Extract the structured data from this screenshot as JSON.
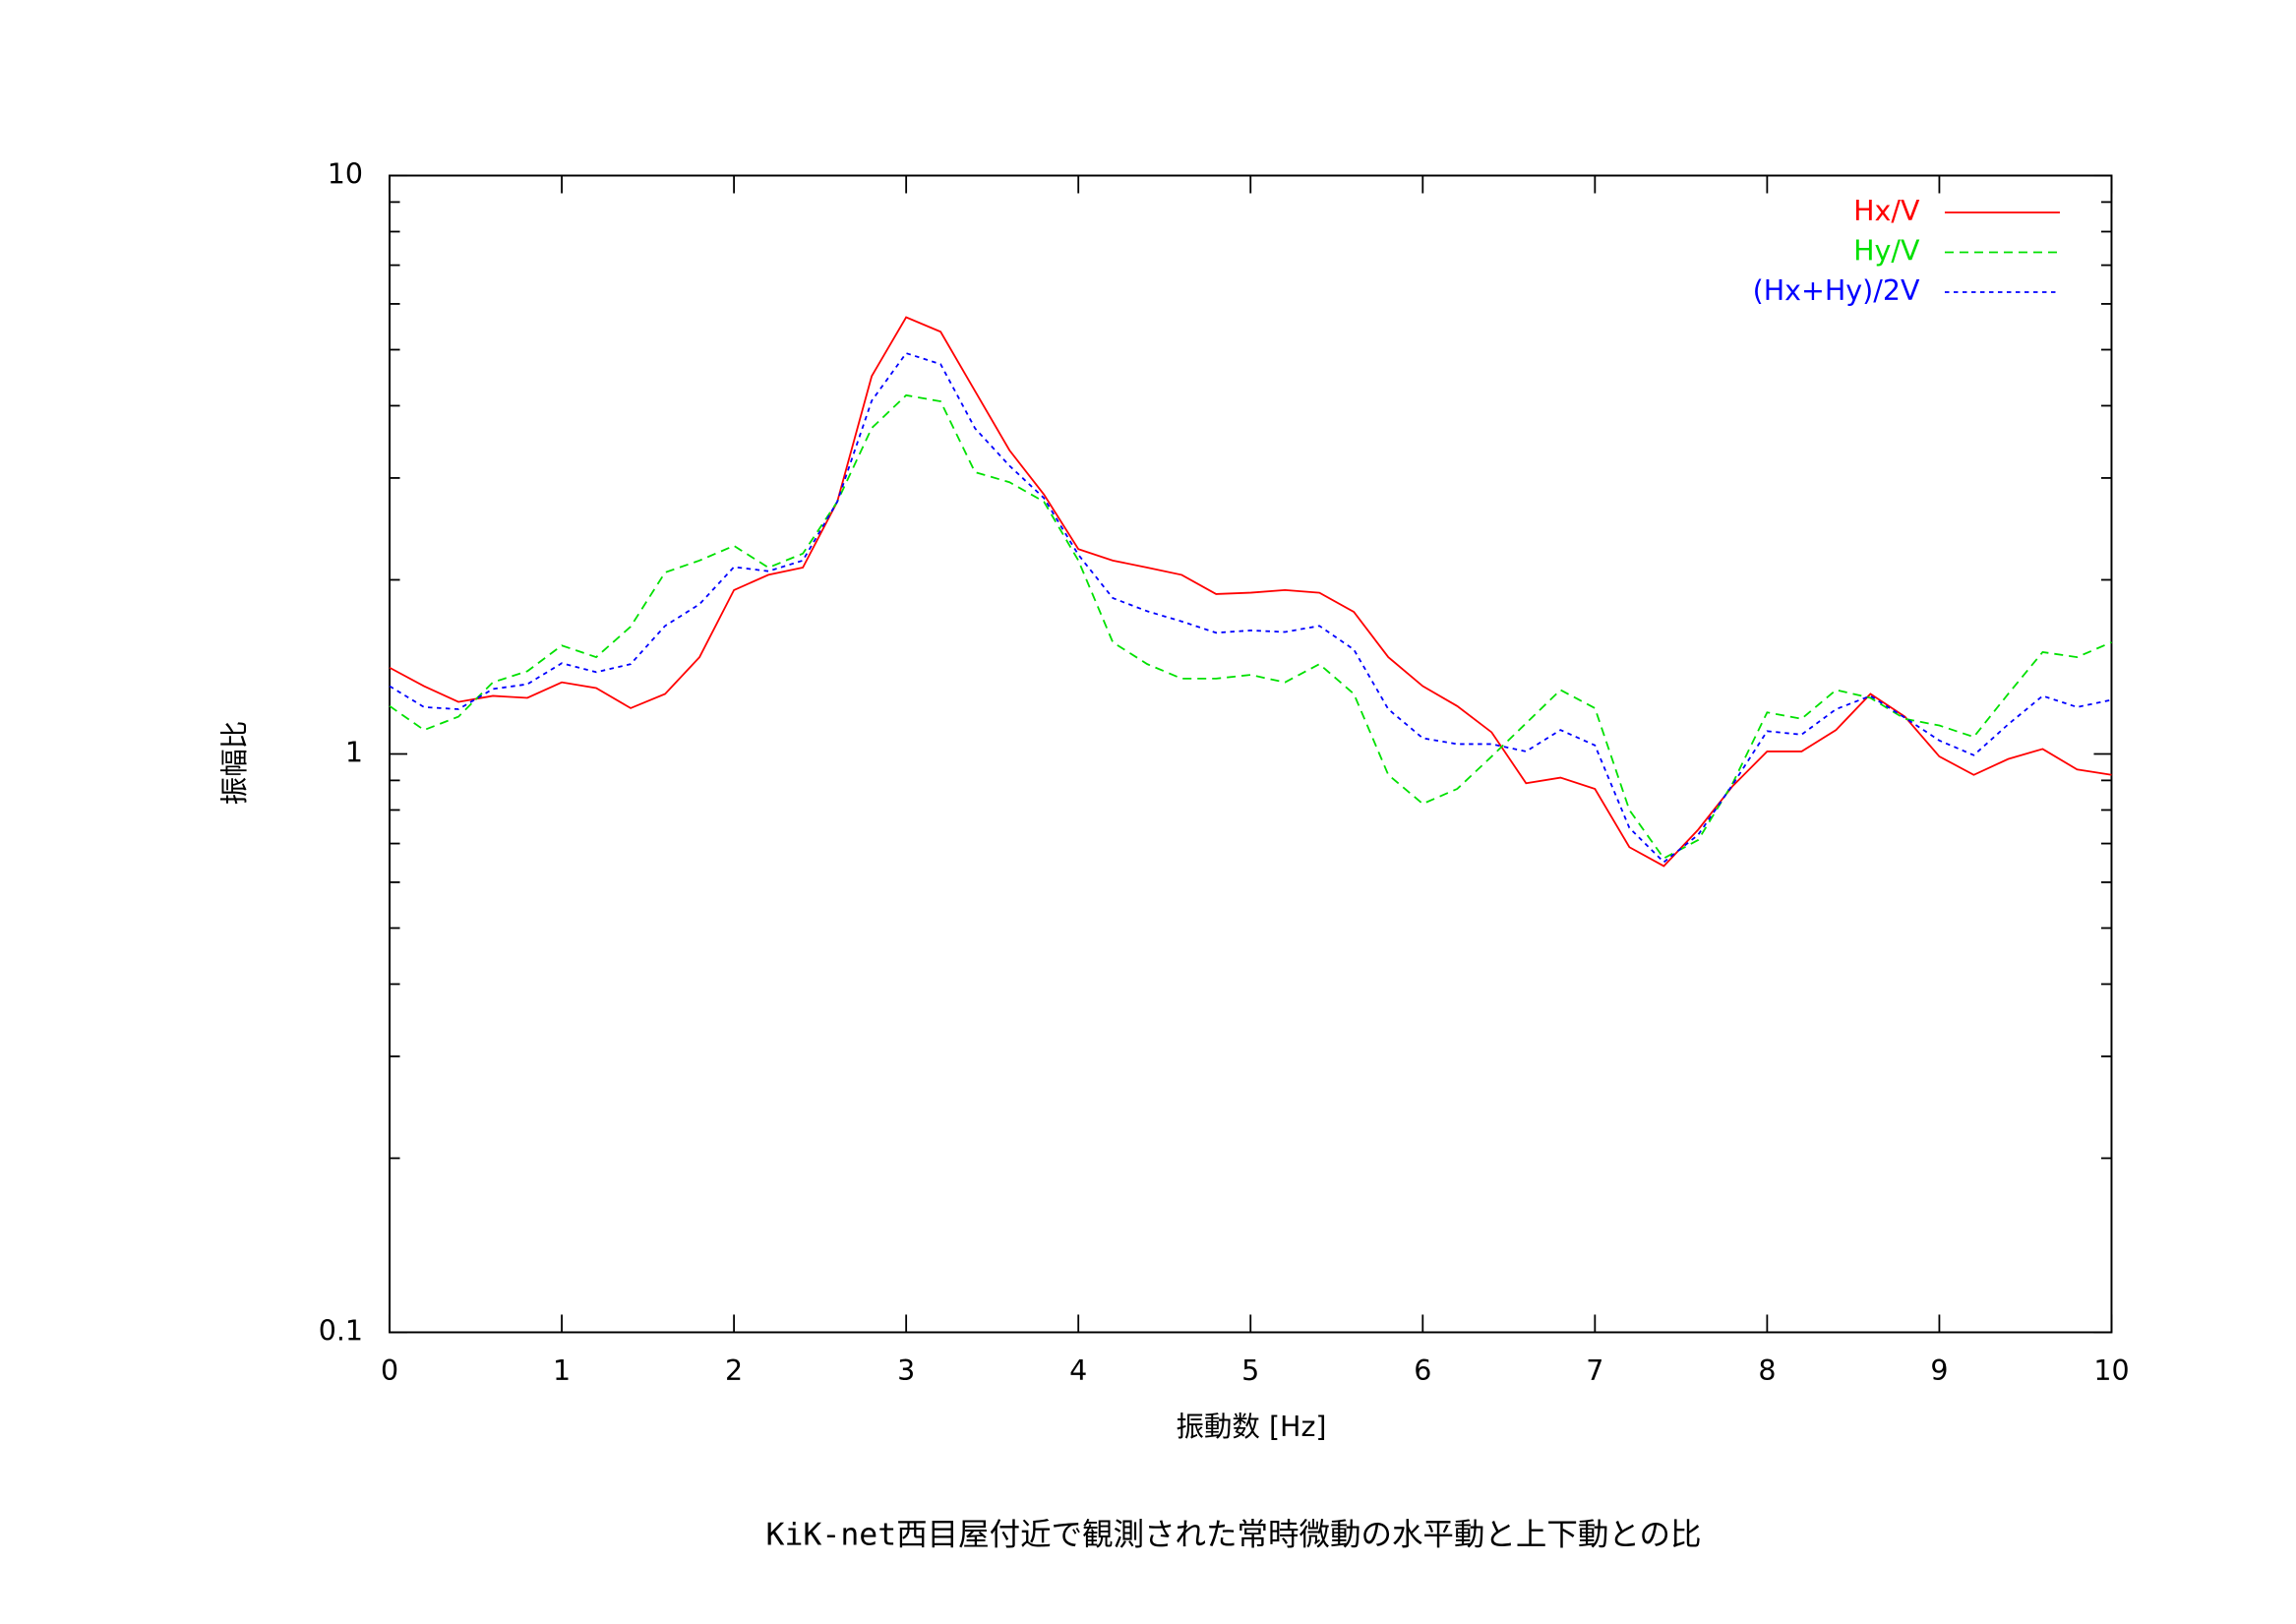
{
  "chart_data": {
    "type": "line",
    "xlabel": "振動数 [Hz]",
    "ylabel": "振幅比",
    "caption": "KiK-net西目屋付近で観測された常時微動の水平動と上下動との比",
    "x": [
      0,
      0.2,
      0.4,
      0.6,
      0.8,
      1.0,
      1.2,
      1.4,
      1.6,
      1.8,
      2.0,
      2.2,
      2.4,
      2.6,
      2.8,
      3.0,
      3.2,
      3.4,
      3.6,
      3.8,
      4.0,
      4.2,
      4.4,
      4.6,
      4.8,
      5.0,
      5.2,
      5.4,
      5.6,
      5.8,
      6.0,
      6.2,
      6.4,
      6.6,
      6.8,
      7.0,
      7.2,
      7.4,
      7.6,
      7.8,
      8.0,
      8.2,
      8.4,
      8.6,
      8.8,
      9.0,
      9.2,
      9.4,
      9.6,
      9.8,
      10.0
    ],
    "series": [
      {
        "name": "Hx/V",
        "color": "#ff0000",
        "dash": "solid",
        "values": [
          1.41,
          1.31,
          1.23,
          1.26,
          1.25,
          1.33,
          1.3,
          1.2,
          1.27,
          1.47,
          1.92,
          2.04,
          2.1,
          2.73,
          4.5,
          5.69,
          5.37,
          4.24,
          3.35,
          2.81,
          2.26,
          2.16,
          2.1,
          2.04,
          1.89,
          1.9,
          1.92,
          1.9,
          1.76,
          1.47,
          1.31,
          1.21,
          1.09,
          0.89,
          0.91,
          0.87,
          0.69,
          0.64,
          0.74,
          0.88,
          1.01,
          1.01,
          1.1,
          1.27,
          1.16,
          0.99,
          0.92,
          0.98,
          1.02,
          0.94,
          0.92
        ]
      },
      {
        "name": "Hy/V",
        "color": "#00e000",
        "dash": "dashed",
        "values": [
          1.21,
          1.1,
          1.16,
          1.33,
          1.39,
          1.54,
          1.47,
          1.66,
          2.06,
          2.16,
          2.29,
          2.1,
          2.22,
          2.73,
          3.66,
          4.17,
          4.07,
          3.07,
          2.95,
          2.73,
          2.16,
          1.56,
          1.43,
          1.35,
          1.35,
          1.37,
          1.33,
          1.43,
          1.27,
          0.92,
          0.82,
          0.87,
          0.99,
          1.13,
          1.29,
          1.2,
          0.8,
          0.66,
          0.71,
          0.89,
          1.18,
          1.15,
          1.29,
          1.25,
          1.15,
          1.12,
          1.07,
          1.27,
          1.5,
          1.47,
          1.56
        ]
      },
      {
        "name": "(Hx+Hy)/2V",
        "color": "#0000ff",
        "dash": "dotted",
        "values": [
          1.31,
          1.205,
          1.195,
          1.295,
          1.32,
          1.435,
          1.385,
          1.43,
          1.665,
          1.815,
          2.105,
          2.07,
          2.16,
          2.73,
          4.08,
          4.93,
          4.72,
          3.655,
          3.15,
          2.77,
          2.21,
          1.86,
          1.765,
          1.695,
          1.62,
          1.635,
          1.625,
          1.665,
          1.515,
          1.195,
          1.065,
          1.04,
          1.04,
          1.01,
          1.1,
          1.035,
          0.745,
          0.65,
          0.725,
          0.885,
          1.095,
          1.08,
          1.195,
          1.26,
          1.155,
          1.055,
          0.995,
          1.125,
          1.26,
          1.205,
          1.24
        ]
      }
    ],
    "xlim": [
      0,
      10
    ],
    "xticks": [
      0,
      1,
      2,
      3,
      4,
      5,
      6,
      7,
      8,
      9,
      10
    ],
    "ylim": [
      0.1,
      10
    ],
    "yticks": [
      0.1,
      1,
      10
    ],
    "ylog": true,
    "yminorticks": [
      0.2,
      0.3,
      0.4,
      0.5,
      0.6,
      0.7,
      0.8,
      0.9,
      2,
      3,
      4,
      5,
      6,
      7,
      8,
      9
    ],
    "grid": false,
    "legend": "top-right"
  }
}
